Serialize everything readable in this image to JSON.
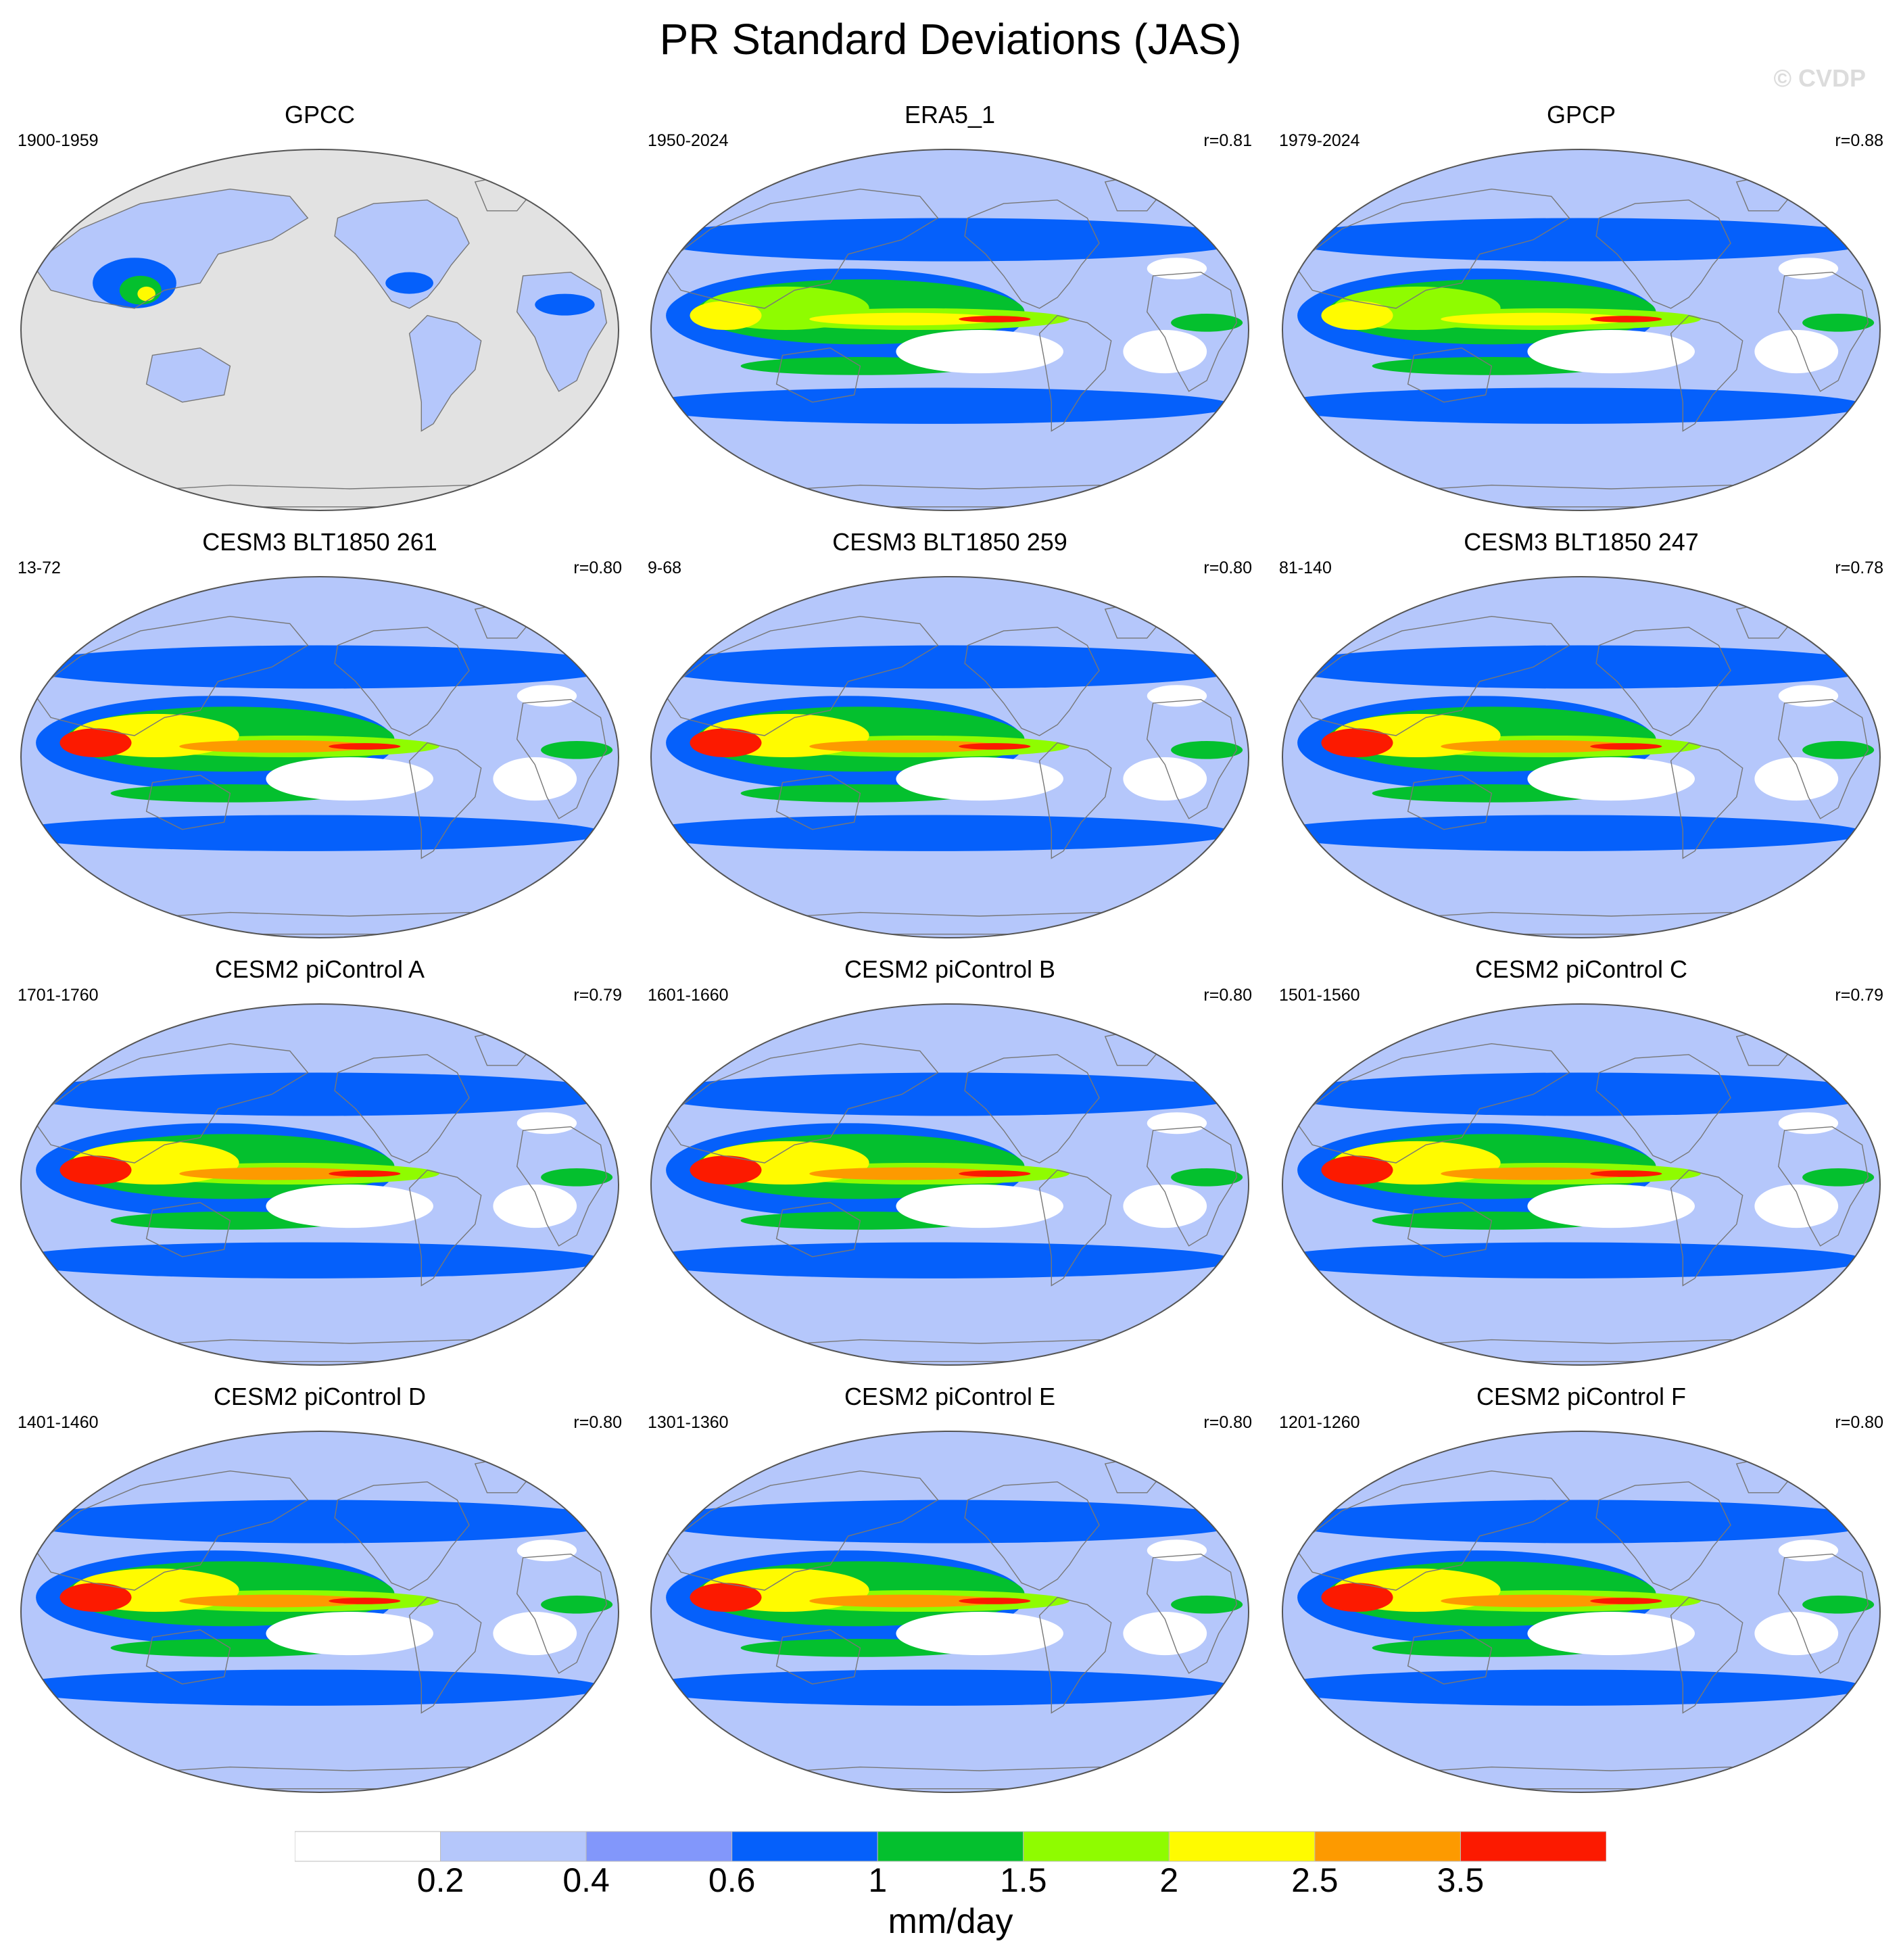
{
  "title": "PR Standard Deviations (JAS)",
  "credit": "© CVDP",
  "units": "mm/day",
  "legend": {
    "colors": [
      "#ffffff",
      "#b5c7fb",
      "#8297fb",
      "#0560fb",
      "#04c02e",
      "#8ffc00",
      "#fffb00",
      "#fd9a00",
      "#fc1a00"
    ],
    "labels": [
      "0.2",
      "0.4",
      "0.6",
      "1",
      "1.5",
      "2",
      "2.5",
      "3.5"
    ]
  },
  "panels": [
    {
      "title": "GPCC",
      "period": "1900-1959",
      "r": "",
      "land_only": true
    },
    {
      "title": "ERA5_1",
      "period": "1950-2024",
      "r": "r=0.81",
      "land_only": false
    },
    {
      "title": "GPCP",
      "period": "1979-2024",
      "r": "r=0.88",
      "land_only": false
    },
    {
      "title": "CESM3 BLT1850 261",
      "period": "13-72",
      "r": "r=0.80",
      "land_only": false
    },
    {
      "title": "CESM3 BLT1850 259",
      "period": "9-68",
      "r": "r=0.80",
      "land_only": false
    },
    {
      "title": "CESM3 BLT1850 247",
      "period": "81-140",
      "r": "r=0.78",
      "land_only": false
    },
    {
      "title": "CESM2 piControl A",
      "period": "1701-1760",
      "r": "r=0.79",
      "land_only": false
    },
    {
      "title": "CESM2 piControl B",
      "period": "1601-1660",
      "r": "r=0.80",
      "land_only": false
    },
    {
      "title": "CESM2 piControl C",
      "period": "1501-1560",
      "r": "r=0.79",
      "land_only": false
    },
    {
      "title": "CESM2 piControl D",
      "period": "1401-1460",
      "r": "r=0.80",
      "land_only": false
    },
    {
      "title": "CESM2 piControl E",
      "period": "1301-1360",
      "r": "r=0.80",
      "land_only": false
    },
    {
      "title": "CESM2 piControl F",
      "period": "1201-1260",
      "r": "r=0.80",
      "land_only": false
    }
  ]
}
